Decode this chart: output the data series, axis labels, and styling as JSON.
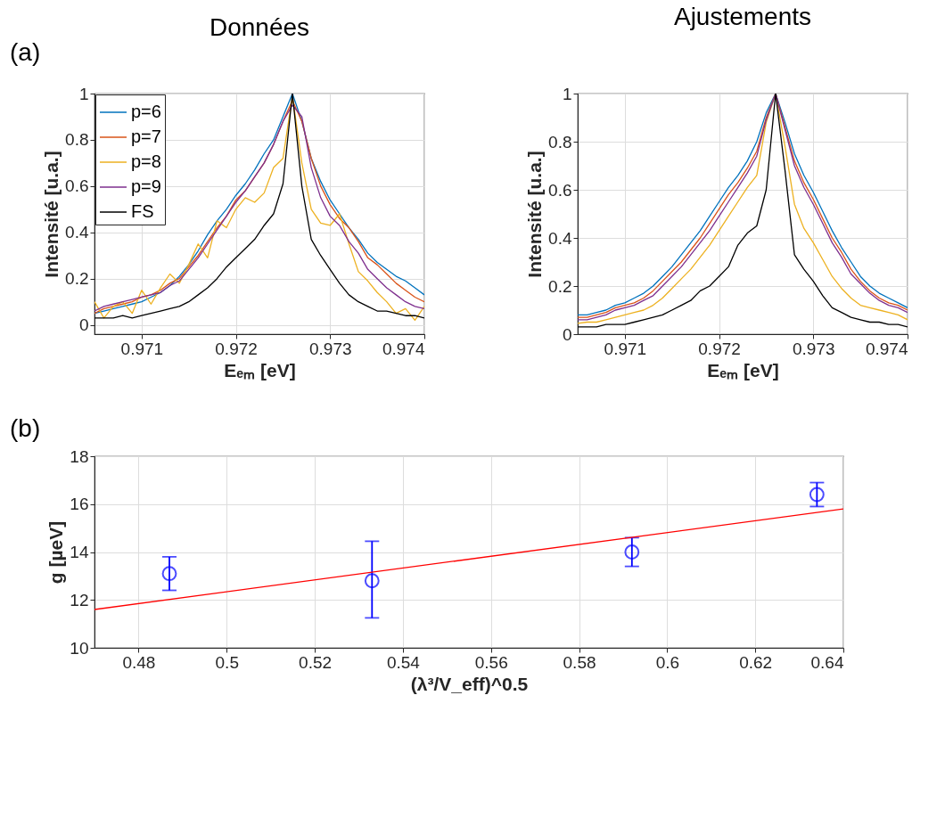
{
  "chart_data": [
    {
      "type": "line",
      "title": "Données",
      "xlabel": "Eₑₘ [eV]",
      "ylabel": "Intensité [u.a.]",
      "annotations": [
        "(a)"
      ],
      "x": [
        0.9705,
        0.9706,
        0.9707,
        0.9708,
        0.9709,
        0.971,
        0.9711,
        0.9712,
        0.9713,
        0.9714,
        0.9715,
        0.9716,
        0.9717,
        0.9718,
        0.9719,
        0.972,
        0.9721,
        0.9722,
        0.9723,
        0.9724,
        0.9725,
        0.9726,
        0.9727,
        0.9728,
        0.9729,
        0.973,
        0.9731,
        0.9732,
        0.9733,
        0.9734,
        0.9735,
        0.9736,
        0.9737,
        0.9738,
        0.9739,
        0.974
      ],
      "xlim": [
        0.9705,
        0.974
      ],
      "xticks": [
        0.971,
        0.972,
        0.973,
        0.974
      ],
      "ylim": [
        -0.04,
        1
      ],
      "yticks": [
        0,
        0.2,
        0.4,
        0.6,
        0.8,
        1
      ],
      "grid": true,
      "legend": "top left",
      "line_style": "solid",
      "marker": "none",
      "series": [
        {
          "name": "p=6",
          "color": "#0072bd",
          "values": [
            0.05,
            0.06,
            0.07,
            0.08,
            0.09,
            0.1,
            0.12,
            0.14,
            0.17,
            0.21,
            0.26,
            0.32,
            0.39,
            0.45,
            0.5,
            0.56,
            0.61,
            0.67,
            0.74,
            0.8,
            0.9,
            1.0,
            0.88,
            0.72,
            0.62,
            0.54,
            0.48,
            0.42,
            0.37,
            0.31,
            0.27,
            0.24,
            0.21,
            0.19,
            0.16,
            0.13
          ]
        },
        {
          "name": "p=7",
          "color": "#d95319",
          "values": [
            0.05,
            0.07,
            0.08,
            0.09,
            0.1,
            0.12,
            0.13,
            0.15,
            0.18,
            0.2,
            0.25,
            0.3,
            0.36,
            0.42,
            0.47,
            0.54,
            0.58,
            0.64,
            0.7,
            0.78,
            0.88,
            0.97,
            0.88,
            0.72,
            0.6,
            0.52,
            0.46,
            0.42,
            0.36,
            0.29,
            0.26,
            0.22,
            0.18,
            0.15,
            0.12,
            0.1
          ]
        },
        {
          "name": "p=8",
          "color": "#edb120",
          "values": [
            0.1,
            0.03,
            0.08,
            0.1,
            0.05,
            0.15,
            0.09,
            0.16,
            0.22,
            0.18,
            0.26,
            0.35,
            0.29,
            0.45,
            0.42,
            0.5,
            0.55,
            0.53,
            0.57,
            0.68,
            0.72,
            0.99,
            0.7,
            0.5,
            0.44,
            0.43,
            0.48,
            0.35,
            0.23,
            0.19,
            0.14,
            0.1,
            0.05,
            0.07,
            0.02,
            0.08
          ]
        },
        {
          "name": "p=9",
          "color": "#7e2f8e",
          "values": [
            0.06,
            0.08,
            0.09,
            0.1,
            0.11,
            0.12,
            0.13,
            0.14,
            0.17,
            0.19,
            0.24,
            0.29,
            0.35,
            0.41,
            0.47,
            0.53,
            0.58,
            0.64,
            0.7,
            0.78,
            0.88,
            0.95,
            0.9,
            0.68,
            0.55,
            0.47,
            0.43,
            0.36,
            0.31,
            0.24,
            0.2,
            0.16,
            0.13,
            0.1,
            0.08,
            0.07
          ]
        },
        {
          "name": "FS",
          "color": "#000000",
          "values": [
            0.03,
            0.03,
            0.03,
            0.04,
            0.03,
            0.04,
            0.05,
            0.06,
            0.07,
            0.08,
            0.1,
            0.13,
            0.16,
            0.2,
            0.25,
            0.29,
            0.33,
            0.37,
            0.43,
            0.48,
            0.61,
            1.0,
            0.6,
            0.37,
            0.3,
            0.24,
            0.18,
            0.13,
            0.1,
            0.08,
            0.06,
            0.06,
            0.05,
            0.04,
            0.04,
            0.03
          ]
        }
      ]
    },
    {
      "type": "line",
      "title": "Ajustements",
      "xlabel": "Eₑₘ [eV]",
      "ylabel": "Intensité [u.a.]",
      "x": [
        0.9705,
        0.9706,
        0.9707,
        0.9708,
        0.9709,
        0.971,
        0.9711,
        0.9712,
        0.9713,
        0.9714,
        0.9715,
        0.9716,
        0.9717,
        0.9718,
        0.9719,
        0.972,
        0.9721,
        0.9722,
        0.9723,
        0.9724,
        0.9725,
        0.9726,
        0.9727,
        0.9728,
        0.9729,
        0.973,
        0.9731,
        0.9732,
        0.9733,
        0.9734,
        0.9735,
        0.9736,
        0.9737,
        0.9738,
        0.9739,
        0.974
      ],
      "xlim": [
        0.9705,
        0.974
      ],
      "xticks": [
        0.971,
        0.972,
        0.973,
        0.974
      ],
      "ylim": [
        0,
        1
      ],
      "yticks": [
        0,
        0.2,
        0.4,
        0.6,
        0.8,
        1
      ],
      "grid": true,
      "legend": "top left",
      "line_style": "solid",
      "marker": "none",
      "series": [
        {
          "name": "p=6",
          "color": "#0072bd",
          "values": [
            0.08,
            0.08,
            0.09,
            0.1,
            0.12,
            0.13,
            0.15,
            0.17,
            0.2,
            0.24,
            0.28,
            0.33,
            0.38,
            0.43,
            0.49,
            0.55,
            0.61,
            0.66,
            0.72,
            0.8,
            0.92,
            1.0,
            0.88,
            0.75,
            0.66,
            0.59,
            0.51,
            0.43,
            0.36,
            0.3,
            0.24,
            0.2,
            0.17,
            0.15,
            0.13,
            0.11
          ]
        },
        {
          "name": "p=7",
          "color": "#d95319",
          "values": [
            0.07,
            0.07,
            0.08,
            0.09,
            0.11,
            0.12,
            0.13,
            0.15,
            0.18,
            0.22,
            0.26,
            0.3,
            0.35,
            0.4,
            0.46,
            0.52,
            0.58,
            0.63,
            0.69,
            0.76,
            0.9,
            1.0,
            0.86,
            0.72,
            0.63,
            0.56,
            0.48,
            0.4,
            0.34,
            0.27,
            0.22,
            0.18,
            0.15,
            0.13,
            0.12,
            0.1
          ]
        },
        {
          "name": "p=8",
          "color": "#edb120",
          "values": [
            0.045,
            0.05,
            0.05,
            0.06,
            0.07,
            0.08,
            0.09,
            0.1,
            0.12,
            0.15,
            0.19,
            0.23,
            0.27,
            0.32,
            0.37,
            0.43,
            0.49,
            0.55,
            0.61,
            0.66,
            0.88,
            1.0,
            0.78,
            0.54,
            0.44,
            0.38,
            0.31,
            0.24,
            0.19,
            0.15,
            0.12,
            0.11,
            0.1,
            0.09,
            0.08,
            0.06
          ]
        },
        {
          "name": "p=9",
          "color": "#7e2f8e",
          "values": [
            0.06,
            0.06,
            0.07,
            0.08,
            0.1,
            0.11,
            0.12,
            0.14,
            0.16,
            0.2,
            0.24,
            0.28,
            0.33,
            0.38,
            0.43,
            0.49,
            0.55,
            0.61,
            0.67,
            0.74,
            0.89,
            1.0,
            0.85,
            0.7,
            0.61,
            0.54,
            0.46,
            0.38,
            0.32,
            0.25,
            0.21,
            0.17,
            0.14,
            0.12,
            0.11,
            0.09
          ]
        },
        {
          "name": "FS",
          "color": "#000000",
          "values": [
            0.03,
            0.03,
            0.03,
            0.04,
            0.04,
            0.04,
            0.05,
            0.06,
            0.07,
            0.08,
            0.1,
            0.12,
            0.14,
            0.18,
            0.2,
            0.24,
            0.28,
            0.37,
            0.42,
            0.45,
            0.6,
            1.0,
            0.68,
            0.33,
            0.27,
            0.22,
            0.16,
            0.11,
            0.09,
            0.07,
            0.06,
            0.05,
            0.05,
            0.04,
            0.04,
            0.03
          ]
        }
      ]
    },
    {
      "type": "scatter",
      "xlabel": "(λ³/V_eff)^0.5",
      "ylabel": "g [µeV]",
      "annotations": [
        "(b)"
      ],
      "xlim": [
        0.47,
        0.64
      ],
      "xticks": [
        0.48,
        0.5,
        0.52,
        0.54,
        0.56,
        0.58,
        0.6,
        0.62,
        0.64
      ],
      "ylim": [
        10,
        18
      ],
      "yticks": [
        10,
        12,
        14,
        16,
        18
      ],
      "grid": true,
      "legend": false,
      "series": [
        {
          "type": "scatter",
          "color": "#0000ff",
          "marker": "circle",
          "x": [
            0.487,
            0.533,
            0.592,
            0.634
          ],
          "values": [
            13.1,
            12.8,
            14.0,
            16.4
          ],
          "errors": [
            [
              12.4,
              13.8
            ],
            [
              11.25,
              14.45
            ],
            [
              13.4,
              14.6
            ],
            [
              15.9,
              16.9
            ]
          ]
        },
        {
          "type": "line",
          "color": "#ff0000",
          "marker": "none",
          "line_style": "solid",
          "x": [
            0.47,
            0.64
          ],
          "values": [
            11.6,
            15.8
          ]
        }
      ]
    }
  ]
}
